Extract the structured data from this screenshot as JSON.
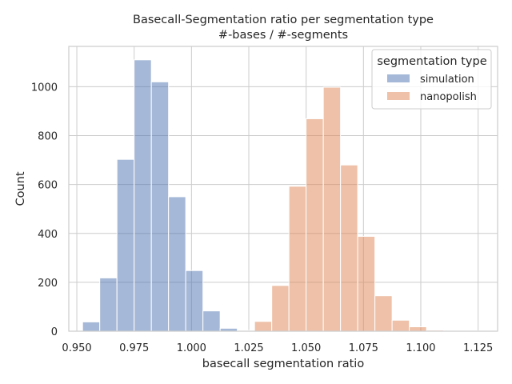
{
  "chart_data": {
    "type": "bar",
    "subtype": "histogram",
    "title": "Basecall-Segmentation ratio per segmentation type",
    "subtitle": "#-bases / #-segments",
    "xlabel": "basecall segmentation ratio",
    "ylabel": "Count",
    "xlim": [
      0.9465,
      1.1335
    ],
    "ylim": [
      0,
      1165
    ],
    "xticks": [
      0.95,
      0.975,
      1.0,
      1.025,
      1.05,
      1.075,
      1.1,
      1.125
    ],
    "xtick_labels": [
      "0.950",
      "0.975",
      "1.000",
      "1.025",
      "1.050",
      "1.075",
      "1.100",
      "1.125"
    ],
    "yticks": [
      0,
      200,
      400,
      600,
      800,
      1000
    ],
    "ytick_labels": [
      "0",
      "200",
      "400",
      "600",
      "800",
      "1000"
    ],
    "grid": true,
    "legend": {
      "title": "segmentation type",
      "placement": "top-right"
    },
    "bin_width": 0.0075,
    "series": [
      {
        "name": "simulation",
        "color": "#4c72b0",
        "bins": [
          {
            "x0": 0.9525,
            "x1": 0.96,
            "count": 38
          },
          {
            "x0": 0.96,
            "x1": 0.9675,
            "count": 218
          },
          {
            "x0": 0.9675,
            "x1": 0.975,
            "count": 703
          },
          {
            "x0": 0.975,
            "x1": 0.9825,
            "count": 1110
          },
          {
            "x0": 0.9825,
            "x1": 0.99,
            "count": 1020
          },
          {
            "x0": 0.99,
            "x1": 0.9975,
            "count": 550
          },
          {
            "x0": 0.9975,
            "x1": 1.005,
            "count": 248
          },
          {
            "x0": 1.005,
            "x1": 1.0125,
            "count": 83
          },
          {
            "x0": 1.0125,
            "x1": 1.02,
            "count": 12
          },
          {
            "x0": 1.02,
            "x1": 1.0275,
            "count": 3
          }
        ]
      },
      {
        "name": "nanopolish",
        "color": "#dd8452",
        "bins": [
          {
            "x0": 1.02,
            "x1": 1.0275,
            "count": 3
          },
          {
            "x0": 1.0275,
            "x1": 1.035,
            "count": 40
          },
          {
            "x0": 1.035,
            "x1": 1.0425,
            "count": 187
          },
          {
            "x0": 1.0425,
            "x1": 1.05,
            "count": 593
          },
          {
            "x0": 1.05,
            "x1": 1.0575,
            "count": 869
          },
          {
            "x0": 1.0575,
            "x1": 1.065,
            "count": 998
          },
          {
            "x0": 1.065,
            "x1": 1.0725,
            "count": 680
          },
          {
            "x0": 1.0725,
            "x1": 1.08,
            "count": 388
          },
          {
            "x0": 1.08,
            "x1": 1.0875,
            "count": 145
          },
          {
            "x0": 1.0875,
            "x1": 1.095,
            "count": 45
          },
          {
            "x0": 1.095,
            "x1": 1.1025,
            "count": 18
          },
          {
            "x0": 1.1025,
            "x1": 1.11,
            "count": 4
          },
          {
            "x0": 1.11,
            "x1": 1.1175,
            "count": 2
          },
          {
            "x0": 1.1175,
            "x1": 1.125,
            "count": 2
          },
          {
            "x0": 1.125,
            "x1": 1.1325,
            "count": 1
          }
        ]
      }
    ]
  }
}
